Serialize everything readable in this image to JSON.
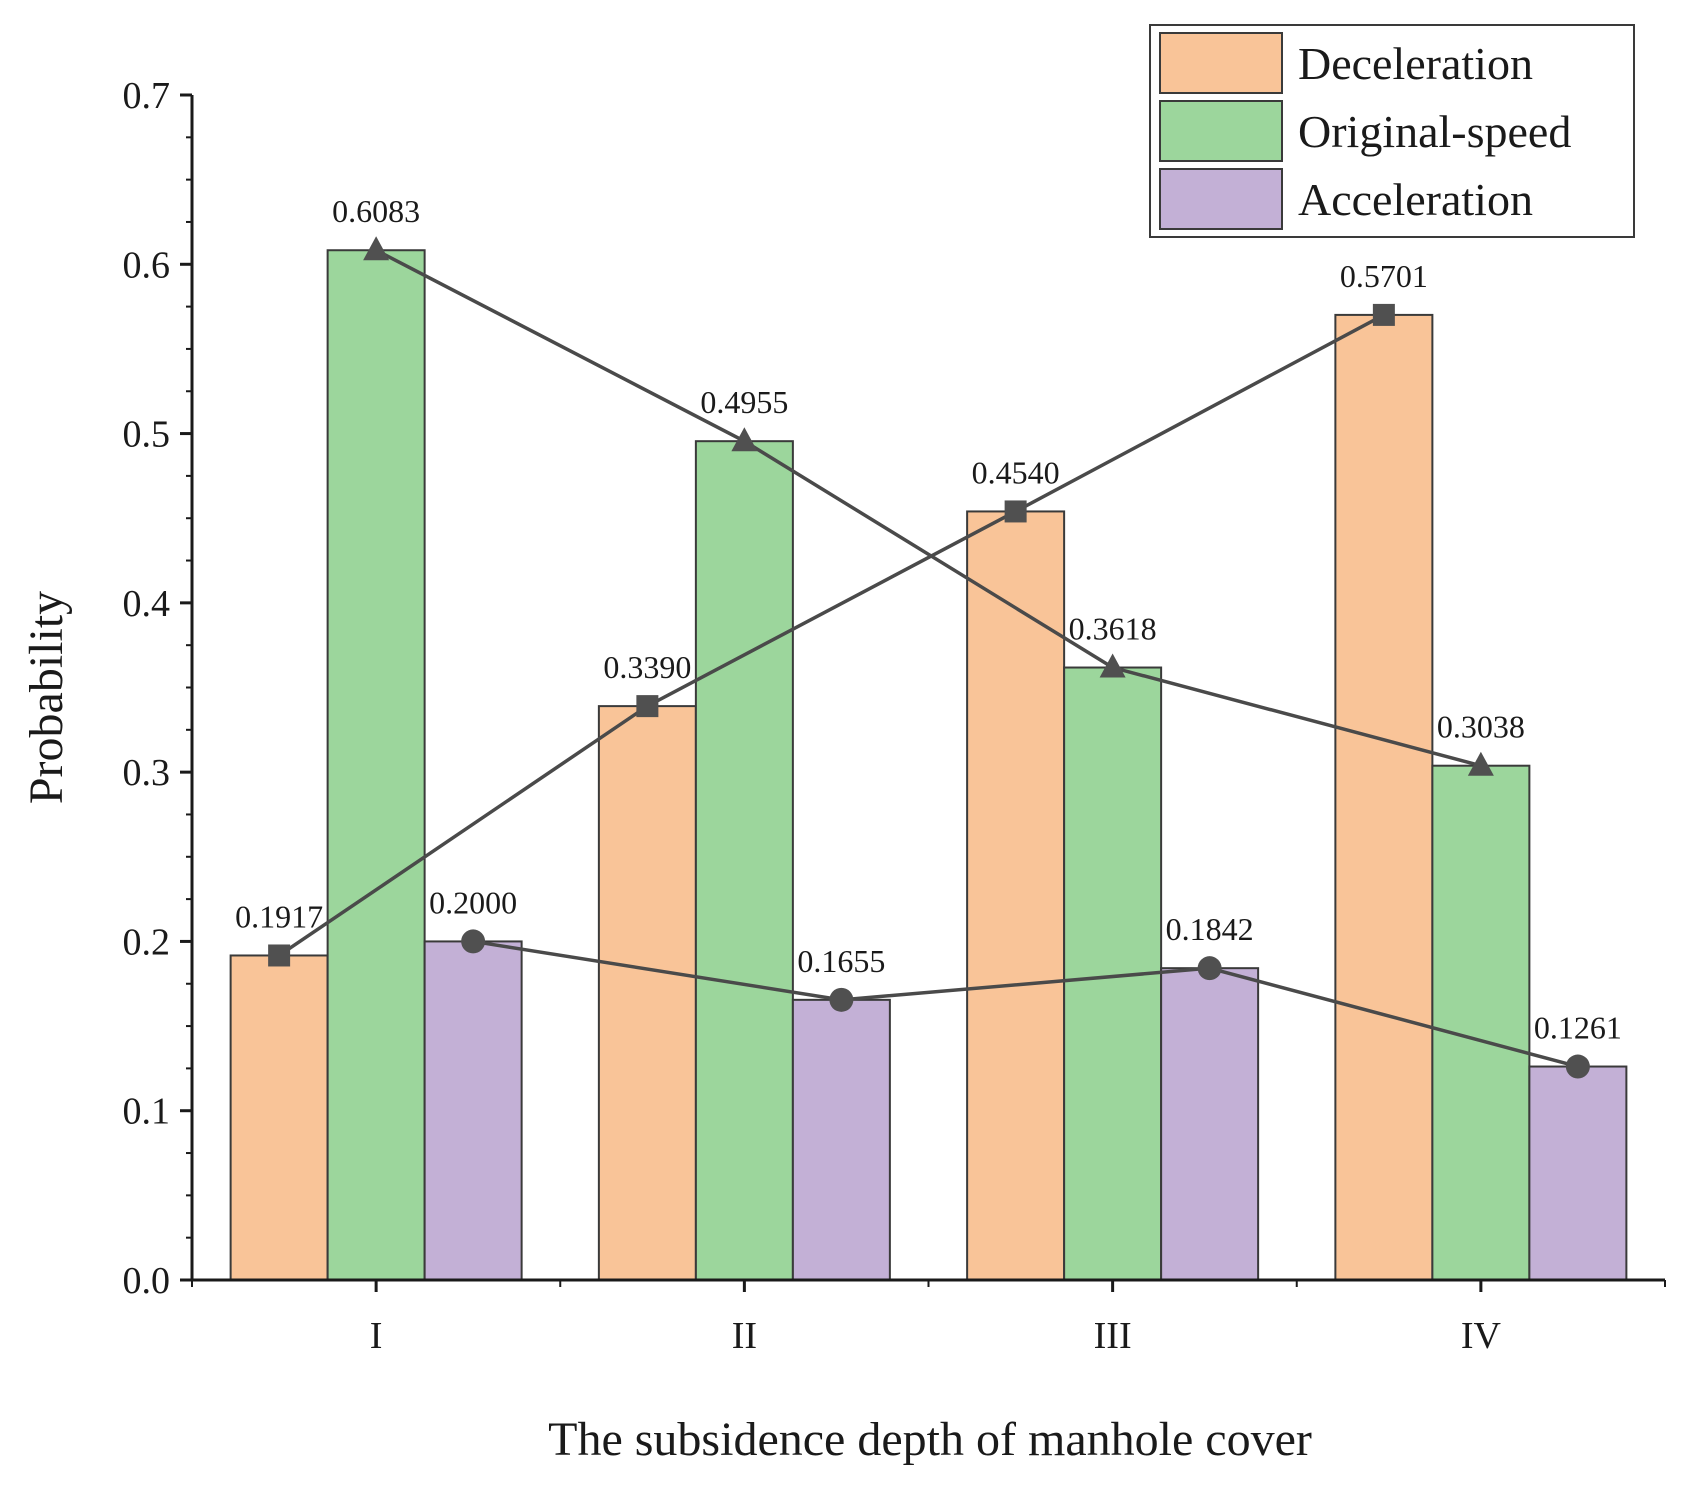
{
  "chart_data": {
    "type": "bar",
    "title": "",
    "xlabel": "The subsidence depth of manhole cover",
    "ylabel": "Probability",
    "ylim": [
      0,
      0.7
    ],
    "yticks": [
      "0.0",
      "0.1",
      "0.2",
      "0.3",
      "0.4",
      "0.5",
      "0.6",
      "0.7"
    ],
    "categories": [
      "I",
      "II",
      "III",
      "IV"
    ],
    "legend_position": "top-right",
    "series": [
      {
        "name": "Deceleration",
        "color": "#f9c498",
        "marker": "square",
        "values": [
          0.1917,
          0.339,
          0.454,
          0.5701
        ],
        "labels": [
          "0.1917",
          "0.3390",
          "0.4540",
          "0.5701"
        ]
      },
      {
        "name": "Original-speed",
        "color": "#9cd69c",
        "marker": "triangle",
        "values": [
          0.6083,
          0.4955,
          0.3618,
          0.3038
        ],
        "labels": [
          "0.6083",
          "0.4955",
          "0.3618",
          "0.3038"
        ]
      },
      {
        "name": "Acceleration",
        "color": "#c3b0d6",
        "marker": "circle",
        "values": [
          0.2,
          0.1655,
          0.1842,
          0.1261
        ],
        "labels": [
          "0.2000",
          "0.1655",
          "0.1842",
          "0.1261"
        ]
      }
    ],
    "line_color": "#4a4a4a",
    "marker_color": "#505050",
    "axis_color": "#1a1a1a"
  }
}
